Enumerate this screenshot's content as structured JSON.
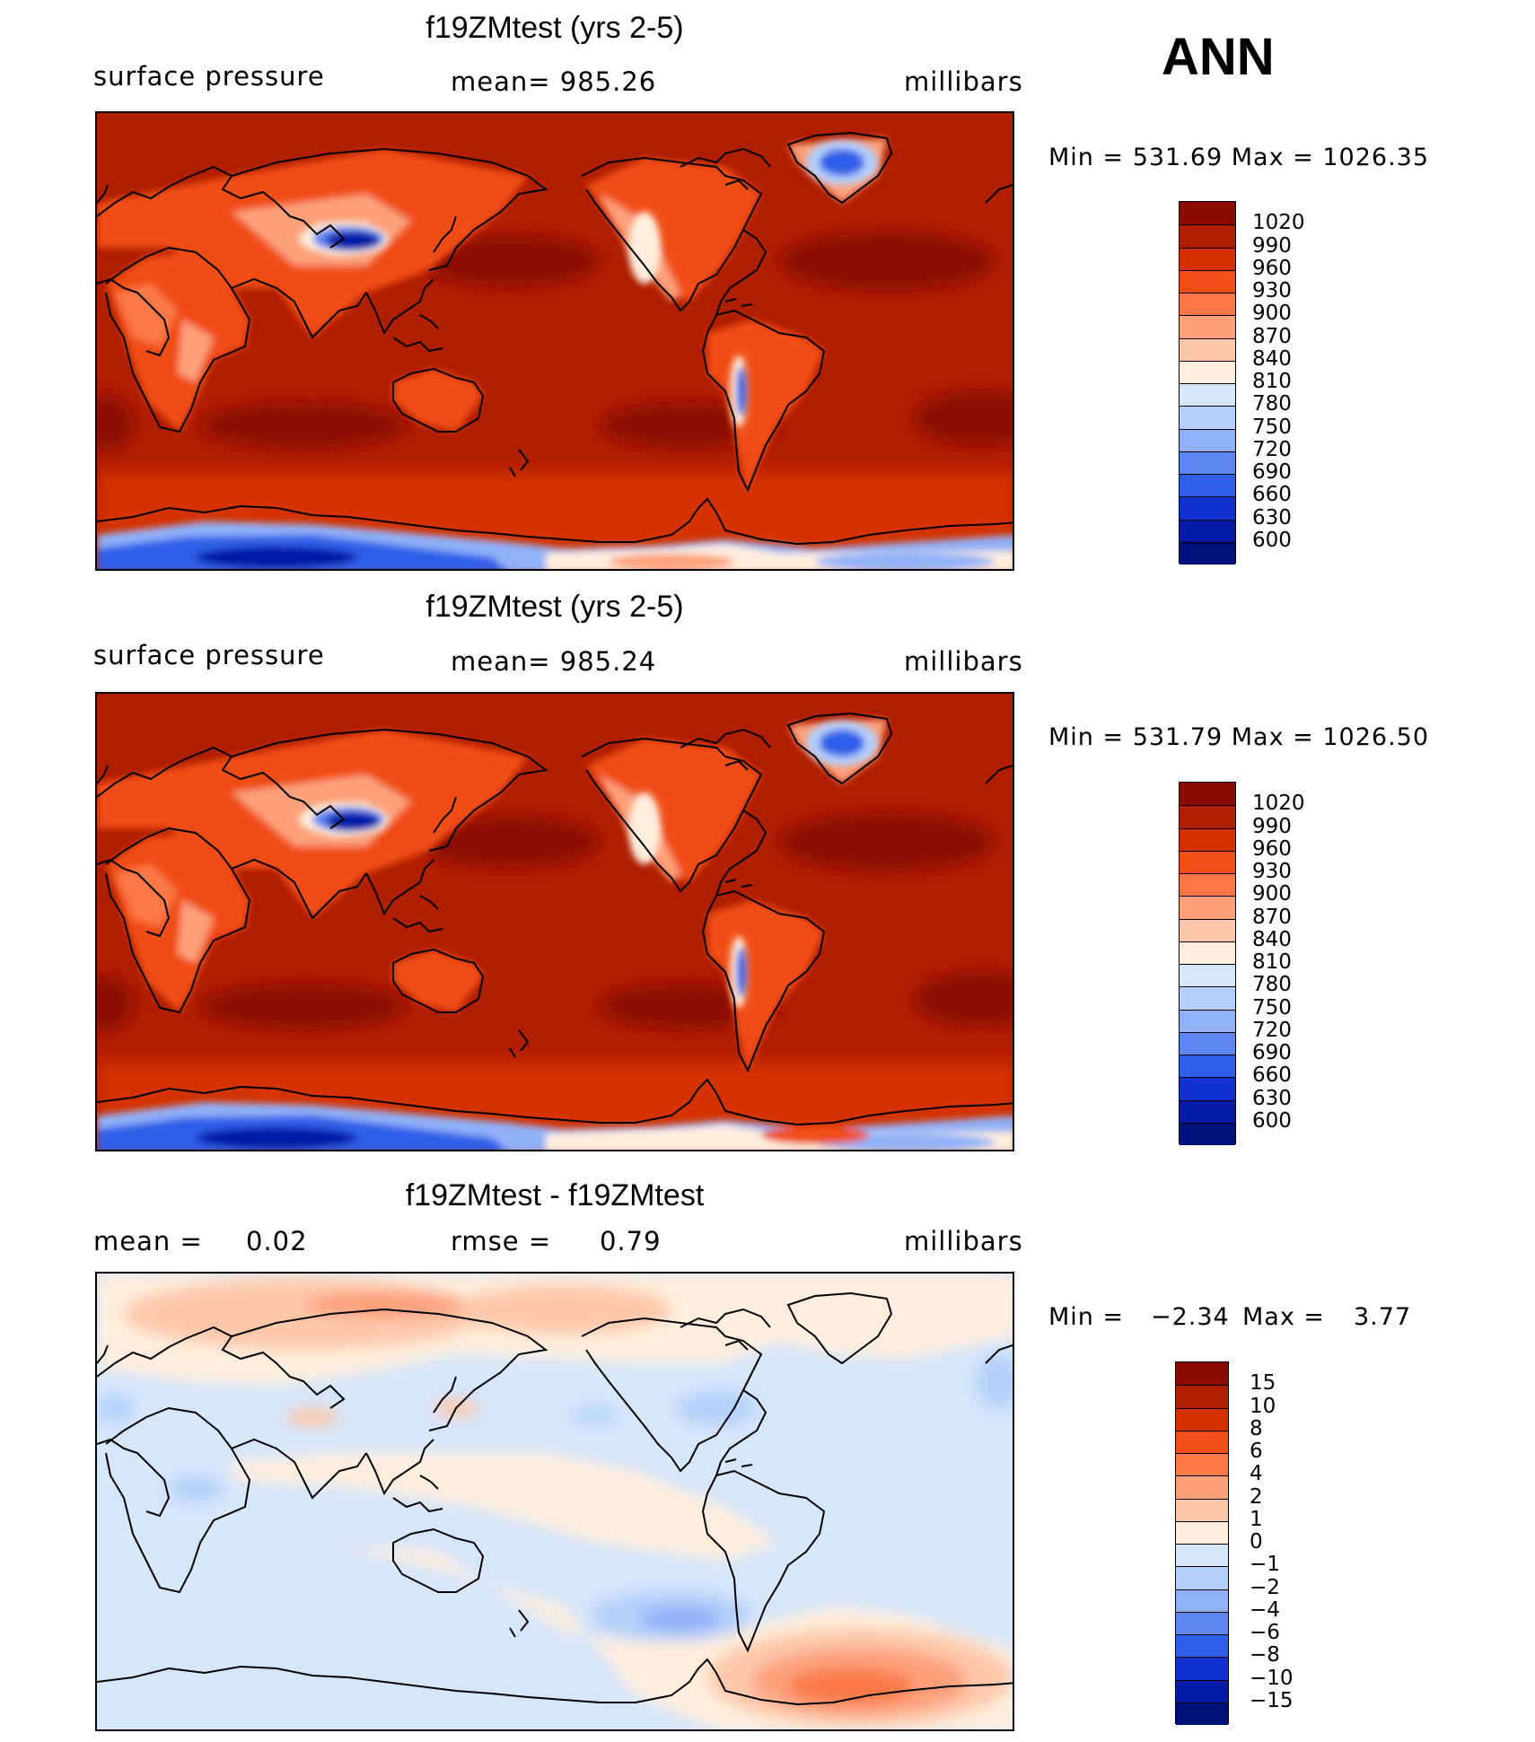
{
  "season": "ANN",
  "panels": [
    {
      "title": "f19ZMtest (yrs 2-5)",
      "left_label": "surface pressure",
      "center_label": "mean=  985.26",
      "right_label": "millibars",
      "minmax": "Min  =  531.69  Max  =  1026.35"
    },
    {
      "title": "f19ZMtest (yrs 2-5)",
      "left_label": "surface pressure",
      "center_label": "mean=  985.24",
      "right_label": "millibars",
      "minmax": "Min  =  531.79  Max  =  1026.50"
    },
    {
      "title": "f19ZMtest - f19ZMtest",
      "left_label": "mean  =",
      "left_value": "0.02",
      "center_label": "rmse  =",
      "center_value": "0.79",
      "right_label": "millibars",
      "minmax_label": "Min  =",
      "min_value": "−2.34",
      "max_label": "Max  =",
      "max_value": "3.77"
    }
  ],
  "chart_data": [
    {
      "type": "heatmap",
      "title": "f19ZMtest (yrs 2-5)",
      "variable": "surface pressure",
      "units": "millibars",
      "mean": 985.26,
      "min": 531.69,
      "max": 1026.35,
      "colorbar_levels": [
        "1020",
        "990",
        "960",
        "930",
        "900",
        "870",
        "840",
        "810",
        "780",
        "750",
        "720",
        "690",
        "660",
        "630",
        "600"
      ],
      "colorbar_colors": [
        "#8b0a00",
        "#b01e00",
        "#d43100",
        "#f04e14",
        "#fb7846",
        "#fca07a",
        "#fdc8aa",
        "#feeedd",
        "#d6e6fb",
        "#b4cffa",
        "#90b0f8",
        "#5e86f3",
        "#2f5ee8",
        "#1232cf",
        "#051ba6",
        "#00107a"
      ]
    },
    {
      "type": "heatmap",
      "title": "f19ZMtest (yrs 2-5)",
      "variable": "surface pressure",
      "units": "millibars",
      "mean": 985.24,
      "min": 531.79,
      "max": 1026.5,
      "colorbar_levels": [
        "1020",
        "990",
        "960",
        "930",
        "900",
        "870",
        "840",
        "810",
        "780",
        "750",
        "720",
        "690",
        "660",
        "630",
        "600"
      ],
      "colorbar_colors": [
        "#8b0a00",
        "#b01e00",
        "#d43100",
        "#f04e14",
        "#fb7846",
        "#fca07a",
        "#fdc8aa",
        "#feeedd",
        "#d6e6fb",
        "#b4cffa",
        "#90b0f8",
        "#5e86f3",
        "#2f5ee8",
        "#1232cf",
        "#051ba6",
        "#00107a"
      ]
    },
    {
      "type": "heatmap",
      "title": "f19ZMtest - f19ZMtest",
      "units": "millibars",
      "mean": 0.02,
      "rmse": 0.79,
      "min": -2.34,
      "max": 3.77,
      "colorbar_levels": [
        "15",
        "10",
        "8",
        "6",
        "4",
        "2",
        "1",
        "0",
        "−1",
        "−2",
        "−4",
        "−6",
        "−8",
        "−10",
        "−15"
      ],
      "colorbar_colors": [
        "#8b0a00",
        "#b01e00",
        "#d43100",
        "#f04e14",
        "#fb7846",
        "#fca07a",
        "#fdc8aa",
        "#feeedd",
        "#d6e6fb",
        "#b4cffa",
        "#90b0f8",
        "#5e86f3",
        "#2f5ee8",
        "#1232cf",
        "#051ba6",
        "#00107a"
      ]
    }
  ]
}
